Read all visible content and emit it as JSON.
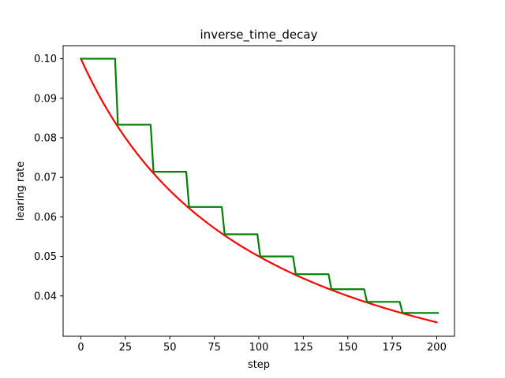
{
  "chart_data": {
    "type": "line",
    "title": "inverse_time_decay",
    "xlabel": "step",
    "ylabel": "learing rate",
    "xlim": [
      -10,
      210
    ],
    "ylim": [
      0.0298,
      0.1033
    ],
    "xticks": [
      0,
      25,
      50,
      75,
      100,
      125,
      150,
      175,
      200
    ],
    "yticks": [
      0.04,
      0.05,
      0.06,
      0.07,
      0.08,
      0.09,
      0.1
    ],
    "ytick_labels": [
      "0.04",
      "0.05",
      "0.06",
      "0.07",
      "0.08",
      "0.09",
      "0.10"
    ],
    "grid": false,
    "legend": "none",
    "series": [
      {
        "color": "#ff0000",
        "style": "smooth",
        "initial_rate": 0.1,
        "decay_rate": 0.5,
        "decay_steps": 50,
        "x_range": [
          0,
          200
        ]
      },
      {
        "color": "#008000",
        "style": "staircase",
        "step_x": [
          0,
          20,
          40,
          60,
          80,
          100,
          120,
          140,
          160,
          180,
          200
        ],
        "step_y": [
          0.1,
          0.0833,
          0.0714,
          0.0625,
          0.0556,
          0.05,
          0.0455,
          0.0417,
          0.0385,
          0.0357,
          0.0357
        ]
      }
    ]
  }
}
